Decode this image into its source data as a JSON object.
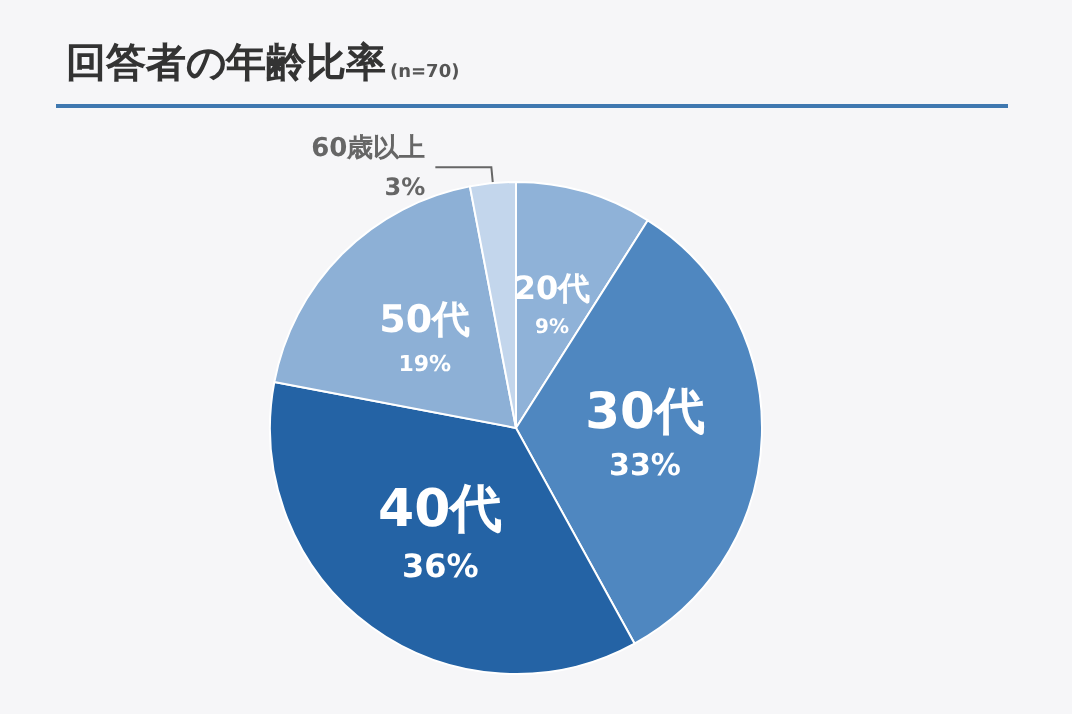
{
  "chart_data": {
    "type": "pie",
    "title": "回答者の年齢比率",
    "subtitle": "(n=70)",
    "categories": [
      "20代",
      "30代",
      "40代",
      "50代",
      "60歳以上"
    ],
    "values": [
      9,
      33,
      36,
      19,
      3
    ],
    "value_labels": [
      "9%",
      "33%",
      "36%",
      "19%",
      "3%"
    ],
    "colors": [
      "#8fb2d8",
      "#4f87c0",
      "#2463a5",
      "#8db0d6",
      "#c3d6ec"
    ],
    "legend": false
  }
}
